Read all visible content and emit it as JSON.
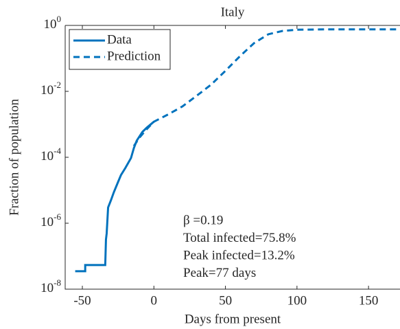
{
  "chart_data": {
    "type": "line",
    "title": "Italy",
    "xlabel": "Days from present",
    "ylabel": "Fraction of population",
    "ylog": true,
    "xlim": [
      -62,
      172
    ],
    "ylim": [
      1e-08,
      1
    ],
    "xticks": [
      -50,
      0,
      50,
      100,
      150
    ],
    "yticks": [
      {
        "value": 1e-08,
        "label": "10^-8"
      },
      {
        "value": 1e-06,
        "label": "10^-6"
      },
      {
        "value": 0.0001,
        "label": "10^-4"
      },
      {
        "value": 0.01,
        "label": "10^-2"
      },
      {
        "value": 1,
        "label": "10^0"
      }
    ],
    "legend": "upper left",
    "series": [
      {
        "name": "Data",
        "color": "#0072bd",
        "style": "solid",
        "x": [
          -55,
          -48,
          -48,
          -34,
          -33.5,
          -33,
          -32,
          -30,
          -28,
          -25,
          -23,
          -20,
          -16,
          -14,
          -12,
          -8,
          -5,
          0
        ],
        "values": [
          3.5e-08,
          3.5e-08,
          5.4e-08,
          5.4e-08,
          3.2e-07,
          4.9e-07,
          3e-06,
          5e-06,
          8.7e-06,
          1.8e-05,
          2.9e-05,
          4.7e-05,
          9.5e-05,
          0.00019,
          0.00032,
          0.00059,
          0.00079,
          0.0012
        ]
      },
      {
        "name": "Prediction",
        "color": "#0072bd",
        "style": "dashed",
        "x": [
          -14,
          -10,
          -5,
          0,
          10,
          20,
          30,
          40,
          50,
          60,
          70,
          80,
          90,
          100,
          120,
          140,
          172
        ],
        "values": [
          0.00022,
          0.0004,
          0.00071,
          0.0012,
          0.002,
          0.0035,
          0.0074,
          0.016,
          0.042,
          0.115,
          0.29,
          0.54,
          0.68,
          0.74,
          0.76,
          0.76,
          0.76
        ]
      }
    ],
    "annotations": [
      "β =0.19",
      "Total infected=75.8%",
      "Peak infected=13.2%",
      "Peak=77 days"
    ]
  }
}
